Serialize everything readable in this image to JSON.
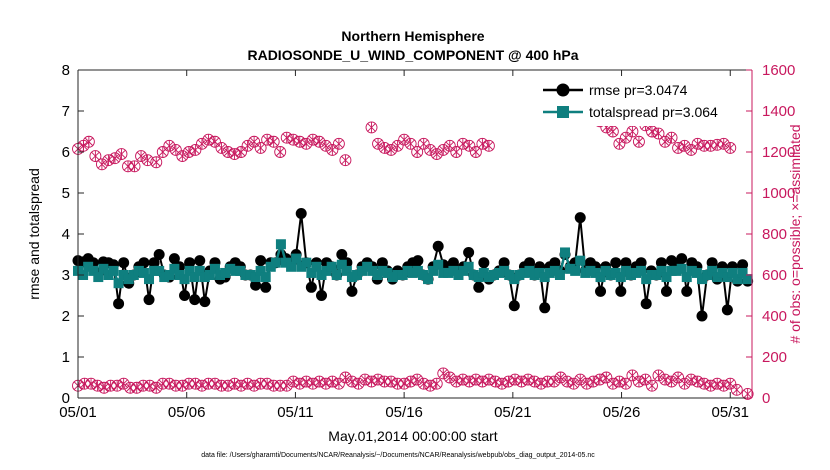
{
  "chart_data": {
    "type": "line",
    "title": "Northern Hemisphere",
    "subtitle": "RADIOSONDE_U_WIND_COMPONENT @ 400 hPa",
    "xlabel": "May.01,2014 00:00:00 start",
    "ylabel_left": "rmse and totalspread",
    "ylabel_right": "# of obs: o=possible; ×=assimilated",
    "ylim_left": [
      0,
      8
    ],
    "ylim_right": [
      0,
      1600
    ],
    "yticks_left": [
      "0",
      "1",
      "2",
      "3",
      "4",
      "5",
      "6",
      "7",
      "8"
    ],
    "yticks_right": [
      "0",
      "200",
      "400",
      "600",
      "800",
      "1000",
      "1200",
      "1400",
      "1600"
    ],
    "xlim_days": [
      0,
      31
    ],
    "xticks": [
      {
        "day": 0,
        "label": "05/01"
      },
      {
        "day": 5,
        "label": "05/06"
      },
      {
        "day": 10,
        "label": "05/11"
      },
      {
        "day": 15,
        "label": "05/16"
      },
      {
        "day": 20,
        "label": "05/21"
      },
      {
        "day": 25,
        "label": "05/26"
      },
      {
        "day": 30,
        "label": "05/31"
      }
    ],
    "legend": [
      {
        "name": "rmse  pr=3.0474",
        "color": "#000000",
        "marker": "circle"
      },
      {
        "name": "totalspread  pr=3.064",
        "color": "#0f7f7f",
        "marker": "square"
      }
    ],
    "footnote": "data file: /Users/gharamti/Documents/NCAR/Reanalysis/~/Documents/NCAR/Reanalysis/webpub/obs_diag_output_2014-05.nc",
    "series": [
      {
        "name": "rmse",
        "axis": "left",
        "color": "#000000",
        "values": [
          3.35,
          3.32,
          3.4,
          3.3,
          3.05,
          3.32,
          3.3,
          3.25,
          2.3,
          3.3,
          2.8,
          3.0,
          3.2,
          3.3,
          2.4,
          3.3,
          3.5,
          3.0,
          2.95,
          3.4,
          3.2,
          2.5,
          3.3,
          2.4,
          3.35,
          2.35,
          3.1,
          3.3,
          2.9,
          2.95,
          3.2,
          3.3,
          3.2,
          3.0,
          3.0,
          2.75,
          3.35,
          2.7,
          3.3,
          3.3,
          3.5,
          3.4,
          3.3,
          3.5,
          4.5,
          3.3,
          2.7,
          3.3,
          2.5,
          3.3,
          3.2,
          3.0,
          3.5,
          3.3,
          2.6,
          3.0,
          3.2,
          3.3,
          3.2,
          2.9,
          3.3,
          3.1,
          2.9,
          3.1,
          3.0,
          3.2,
          3.3,
          3.35,
          3.0,
          2.9,
          3.2,
          3.7,
          3.25,
          3.2,
          3.3,
          3.1,
          3.2,
          3.55,
          3.0,
          2.7,
          3.3,
          2.9,
          3.0,
          3.1,
          3.3,
          3.0,
          2.25,
          3.0,
          3.2,
          3.3,
          3.0,
          3.2,
          2.2,
          3.2,
          3.3,
          3.1,
          3.5,
          3.2,
          3.3,
          4.4,
          3.1,
          3.3,
          3.2,
          2.6,
          3.2,
          3.0,
          3.3,
          2.6,
          3.3,
          3.0,
          3.2,
          3.3,
          2.3,
          3.1,
          3.0,
          3.3,
          2.6,
          3.35,
          3.25,
          3.4,
          2.6,
          3.3,
          3.2,
          2.0,
          3.0,
          3.3,
          2.9,
          3.2,
          2.15,
          3.2,
          2.85,
          3.25,
          2.85
        ]
      },
      {
        "name": "totalspread",
        "axis": "left",
        "color": "#0f7f7f",
        "values": [
          3.1,
          3.0,
          3.2,
          3.1,
          2.95,
          3.15,
          3.0,
          3.1,
          2.8,
          3.0,
          2.9,
          3.0,
          3.1,
          3.05,
          2.9,
          3.1,
          3.1,
          2.95,
          3.0,
          3.15,
          3.0,
          2.9,
          3.1,
          2.95,
          3.1,
          2.95,
          3.0,
          3.15,
          3.0,
          3.05,
          3.15,
          3.1,
          3.1,
          3.0,
          3.0,
          2.95,
          3.1,
          2.95,
          3.2,
          3.3,
          3.75,
          3.3,
          3.2,
          3.4,
          3.2,
          3.3,
          3.05,
          3.2,
          3.0,
          3.1,
          3.2,
          3.0,
          3.25,
          3.1,
          2.95,
          3.0,
          3.1,
          3.2,
          3.1,
          3.0,
          3.1,
          3.05,
          2.95,
          3.0,
          3.0,
          3.1,
          3.05,
          3.1,
          3.0,
          2.9,
          3.1,
          3.25,
          3.05,
          3.05,
          3.1,
          3.0,
          3.1,
          3.2,
          3.0,
          2.95,
          3.05,
          2.95,
          3.0,
          3.05,
          3.1,
          3.0,
          2.9,
          3.0,
          3.05,
          3.1,
          3.0,
          3.05,
          2.95,
          3.05,
          3.1,
          3.0,
          3.55,
          3.15,
          3.1,
          3.35,
          3.05,
          3.1,
          3.05,
          2.95,
          3.1,
          3.0,
          3.05,
          2.95,
          3.1,
          3.0,
          3.05,
          3.1,
          2.9,
          3.0,
          3.0,
          3.1,
          2.95,
          3.1,
          3.1,
          3.15,
          2.95,
          3.1,
          3.05,
          2.9,
          3.0,
          3.1,
          2.95,
          3.05,
          2.95,
          3.05,
          2.9,
          3.05,
          2.9
        ]
      },
      {
        "name": "obs possible",
        "axis": "right",
        "color": "#c8185e",
        "values": [
          1215,
          1230,
          1250,
          1180,
          1140,
          1160,
          1170,
          1190,
          1130,
          1130,
          1180,
          1160,
          1150,
          1200,
          1230,
          1210,
          1180,
          1200,
          1210,
          1240,
          1260,
          1250,
          1220,
          1200,
          1190,
          1200,
          1230,
          1250,
          1220,
          1260,
          1250,
          1200,
          1270,
          1260,
          1250,
          1240,
          1260,
          1250,
          1230,
          1210,
          1240,
          1160,
          1320,
          1240,
          1220,
          1210,
          1230,
          1260,
          1240,
          1200,
          1240,
          1210,
          1190,
          1210,
          1230,
          1200,
          1240,
          1230,
          1200,
          1240,
          1230,
          1350,
          1320,
          1300,
          1240,
          1270,
          1300,
          1250,
          1330,
          1300,
          1290,
          1250,
          1270,
          1220,
          1230,
          1210,
          1240,
          1230,
          1230,
          1235,
          1240,
          1220
        ],
        "x": [
          0,
          0.25,
          0.5,
          0.8,
          1.1,
          1.4,
          1.7,
          2.0,
          2.3,
          2.6,
          2.9,
          3.2,
          3.6,
          3.9,
          4.2,
          4.5,
          4.8,
          5.1,
          5.4,
          5.7,
          6.0,
          6.3,
          6.6,
          6.9,
          7.2,
          7.5,
          7.8,
          8.1,
          8.4,
          8.7,
          9.0,
          9.3,
          9.6,
          9.9,
          10.2,
          10.5,
          10.8,
          11.1,
          11.4,
          11.7,
          12.0,
          12.3,
          13.5,
          13.8,
          14.1,
          14.4,
          14.7,
          15.0,
          15.3,
          15.6,
          15.9,
          16.2,
          16.5,
          16.8,
          17.1,
          17.4,
          17.7,
          18.0,
          18.3,
          18.6,
          18.9,
          24.0,
          24.3,
          24.6,
          24.9,
          25.2,
          25.5,
          25.8,
          26.1,
          26.4,
          26.7,
          27.0,
          27.3,
          27.6,
          27.9,
          28.2,
          28.5,
          28.8,
          29.1,
          29.4,
          29.7,
          30.0
        ]
      },
      {
        "name": "obs assimilated",
        "axis": "right",
        "color": "#c8185e",
        "values": [
          60,
          70,
          70,
          60,
          50,
          60,
          60,
          70,
          50,
          50,
          60,
          60,
          50,
          70,
          70,
          60,
          60,
          70,
          70,
          60,
          70,
          70,
          60,
          60,
          70,
          60,
          70,
          60,
          70,
          70,
          60,
          60,
          60,
          80,
          70,
          80,
          70,
          80,
          70,
          80,
          70,
          100,
          80,
          70,
          90,
          80,
          90,
          80,
          80,
          70,
          70,
          80,
          90,
          70,
          60,
          70,
          120,
          100,
          80,
          90,
          80,
          90,
          80,
          90,
          80,
          70,
          80,
          90,
          80,
          90,
          80,
          70,
          80,
          80,
          100,
          80,
          70,
          90,
          70,
          80,
          90,
          100,
          70,
          80,
          70,
          110,
          80,
          90,
          60,
          110,
          90,
          80,
          100,
          70,
          90,
          80,
          70,
          60,
          70,
          60,
          70,
          40,
          20
        ],
        "x": [
          0,
          0.3,
          0.6,
          0.9,
          1.2,
          1.5,
          1.8,
          2.1,
          2.4,
          2.7,
          3.0,
          3.3,
          3.6,
          3.9,
          4.2,
          4.5,
          4.8,
          5.1,
          5.4,
          5.7,
          6.0,
          6.3,
          6.6,
          6.9,
          7.2,
          7.5,
          7.8,
          8.1,
          8.4,
          8.7,
          9.0,
          9.3,
          9.6,
          9.9,
          10.2,
          10.5,
          10.8,
          11.1,
          11.4,
          11.7,
          12.0,
          12.3,
          12.6,
          12.9,
          13.2,
          13.5,
          13.8,
          14.1,
          14.4,
          14.7,
          15.0,
          15.3,
          15.6,
          15.9,
          16.2,
          16.5,
          16.8,
          17.1,
          17.4,
          17.7,
          18.0,
          18.3,
          18.6,
          18.9,
          19.2,
          19.5,
          19.8,
          20.1,
          20.4,
          20.7,
          21.0,
          21.3,
          21.6,
          21.9,
          22.2,
          22.5,
          22.8,
          23.1,
          23.4,
          23.7,
          24.0,
          24.3,
          24.6,
          24.9,
          25.2,
          25.5,
          25.8,
          26.1,
          26.4,
          26.7,
          27.0,
          27.3,
          27.6,
          27.9,
          28.2,
          28.5,
          28.8,
          29.1,
          29.4,
          29.7,
          30.0,
          30.3,
          30.8
        ]
      }
    ]
  }
}
